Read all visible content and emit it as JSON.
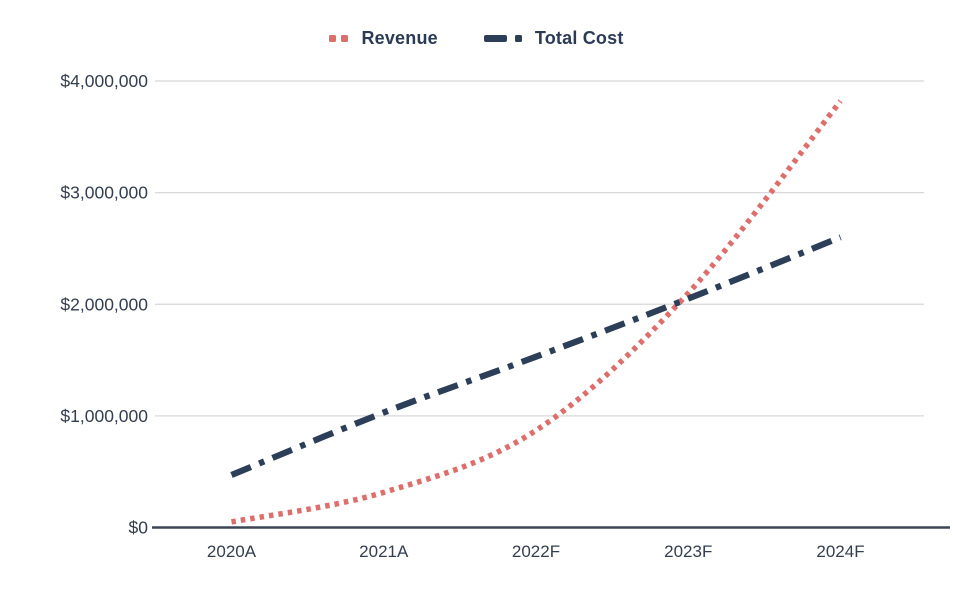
{
  "chart_data": {
    "type": "line",
    "categories": [
      "2020A",
      "2021A",
      "2022F",
      "2023F",
      "2024F"
    ],
    "series": [
      {
        "name": "Revenue",
        "color": "#dd6e6c",
        "line_style": "dotted",
        "values": [
          50000,
          315000,
          870000,
          2100000,
          3820000
        ]
      },
      {
        "name": "Total Cost",
        "color": "#2c3e58",
        "line_style": "dash-dot",
        "values": [
          470000,
          1030000,
          1530000,
          2050000,
          2600000
        ]
      }
    ],
    "title": "",
    "xlabel": "",
    "ylabel": "",
    "ylim": [
      0,
      4000000
    ],
    "yticks": [
      0,
      1000000,
      2000000,
      3000000,
      4000000
    ],
    "ytick_labels": [
      "$0",
      "$1,000,000",
      "$2,000,000",
      "$3,000,000",
      "$4,000,000"
    ],
    "grid": "horizontal",
    "legend_position": "top-center"
  },
  "colors": {
    "background": "#ffffff",
    "gridline": "#d8d8d8",
    "axis_line": "#3b4757",
    "tick_text": "#333e4e",
    "legend_text": "#2b3a55"
  }
}
